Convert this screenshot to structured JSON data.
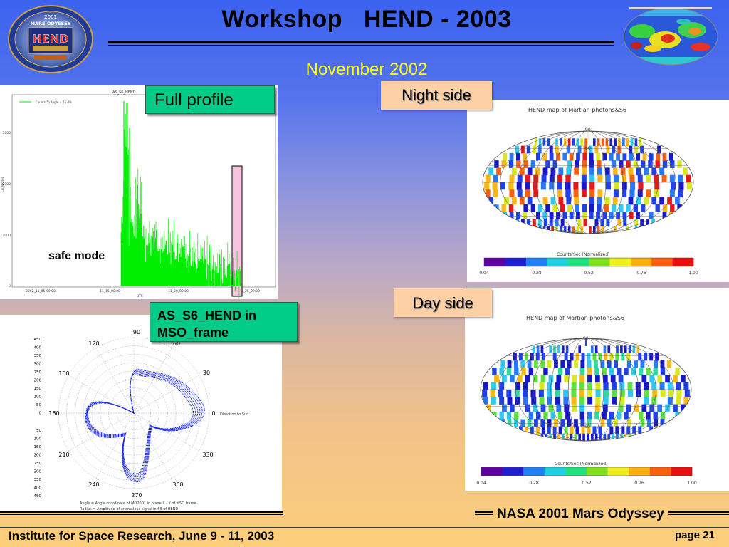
{
  "header": {
    "title": "Workshop   HEND - 2003",
    "subtitle": "November 2002"
  },
  "logo": {
    "line1": "2001",
    "line2": "MARS ODYSSEY",
    "line3": "HEND"
  },
  "profile_plot": {
    "label": "Full profile",
    "plot_title": "AS_S6_HEND",
    "legend": "Counts(5) Angle = 75.4%",
    "y_ticks": [
      "0",
      "1000",
      "2000",
      "3000"
    ],
    "x_ticks": [
      "2002_11_05 00:00",
      "11_15_00:00",
      "11_20_00:00",
      "11_25_00:00"
    ],
    "x_unit": "UTC",
    "y_unit": "Counts/sec",
    "annotation": "safe mode",
    "color_signal": "#00ee00",
    "color_highlight": "#f6c4dc"
  },
  "polar_plot": {
    "label": "AS_S6_HEND in MSO_frame",
    "angle_labels": [
      "0",
      "30",
      "60",
      "90",
      "120",
      "150",
      "180",
      "210",
      "240",
      "270",
      "300",
      "330"
    ],
    "radius_ticks_top": [
      "450",
      "400",
      "350",
      "300",
      "250",
      "200",
      "150",
      "100",
      "50",
      "0"
    ],
    "radius_ticks_bottom": [
      "50",
      "100",
      "150",
      "200",
      "250",
      "300",
      "350",
      "400",
      "450"
    ],
    "direction_label": "Direction to Sun",
    "caption_line1": "Angle  = Angle coordinate of MO2001 in plane X - Y of MSO  frame",
    "caption_line2": "Radius = Amplitude of anomalous signal in S6 of HEND",
    "color": "#1a2ae0"
  },
  "night_map": {
    "label": "Night side",
    "title": "HEND map of Martian photons&S6",
    "lat_labels": [
      "90",
      "60"
    ],
    "colorbar_title": "Counts/Sec (Normalized)",
    "colorbar_ticks": [
      "0.04",
      "0.28",
      "0.52",
      "0.76",
      "1.00"
    ]
  },
  "day_map": {
    "label": "Day side",
    "title": "HEND map of Martian photons&S6",
    "lat_labels": [
      "90",
      "-60"
    ],
    "colorbar_title": "Counts/Sec (Normalized)",
    "colorbar_ticks": [
      "0.04",
      "0.28",
      "0.52",
      "0.76",
      "1.00"
    ]
  },
  "footer": {
    "mission": "NASA 2001 Mars Odyssey",
    "institute": "Institute for Space Research, June 9 - 11, 2003",
    "page": "page 21"
  }
}
